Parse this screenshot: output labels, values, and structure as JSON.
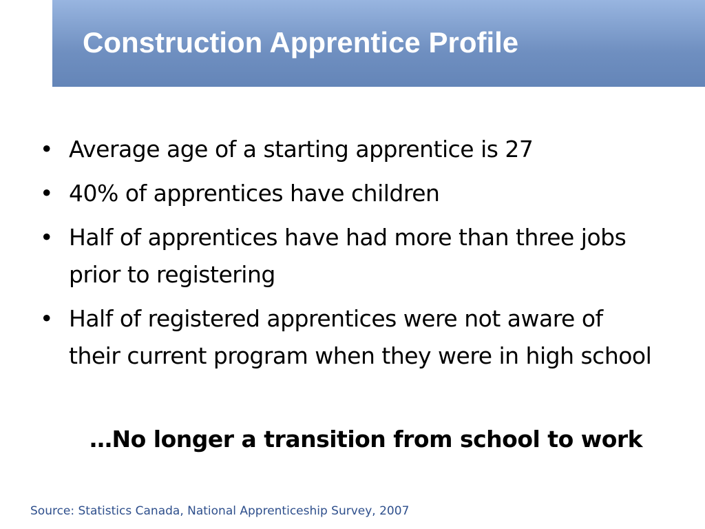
{
  "header": {
    "title": "Construction Apprentice Profile"
  },
  "bullets": [
    "Average age of a starting apprentice is 27",
    "40% of apprentices have children",
    "Half of apprentices have had more than three jobs prior to registering",
    "Half of registered apprentices were not aware of their current program when they were in high school"
  ],
  "conclusion": "…No longer a transition from school to work",
  "source": "Source: Statistics Canada, National Apprenticeship Survey,  2007"
}
